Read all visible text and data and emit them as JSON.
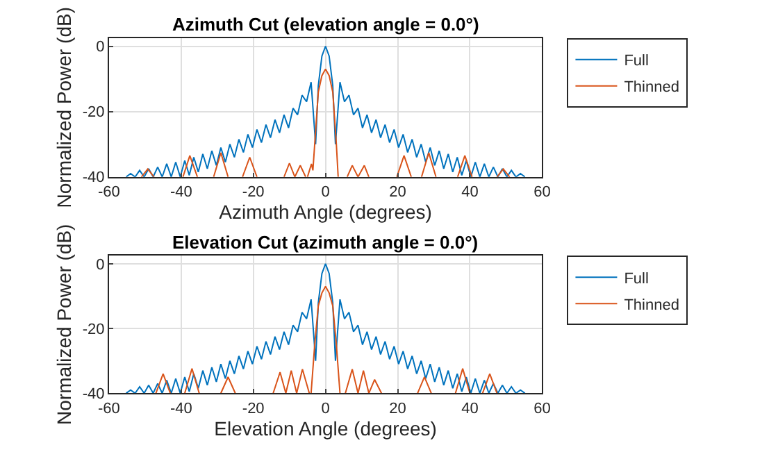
{
  "chart_data": [
    {
      "type": "line",
      "title": "Azimuth Cut (elevation angle = 0.0°)",
      "xlabel": "Azimuth Angle (degrees)",
      "ylabel": "Normalized Power (dB)",
      "xlim": [
        -60,
        60
      ],
      "ylim": [
        -40,
        2.5
      ],
      "xticks": [
        -60,
        -40,
        -20,
        0,
        20,
        40,
        60
      ],
      "yticks": [
        -40,
        -20,
        0
      ],
      "grid": true,
      "legend": "right",
      "marker": "none",
      "line_style": "solid",
      "series": [
        {
          "name": "Full",
          "color": "#0072bd",
          "x": [
            -55.25,
            -54,
            -52.75,
            -51.5,
            -50.25,
            -49,
            -47.75,
            -46.5,
            -45.25,
            -44,
            -42.75,
            -41.5,
            -40.25,
            -39,
            -37.75,
            -36.5,
            -35.25,
            -34,
            -32.75,
            -31.5,
            -30.25,
            -29,
            -27.75,
            -26.5,
            -25.25,
            -24,
            -22.75,
            -21.5,
            -20.25,
            -19,
            -17.75,
            -16.5,
            -15.25,
            -14,
            -12.75,
            -11.5,
            -10.25,
            -9,
            -7.75,
            -6.5,
            -5.25,
            -4,
            -2.75,
            -2,
            -1,
            0,
            1,
            2,
            2.75,
            4,
            5.25,
            6.5,
            7.75,
            9,
            10.25,
            11.5,
            12.75,
            14,
            15.25,
            16.5,
            17.75,
            19,
            20.25,
            21.5,
            22.75,
            24,
            25.25,
            26.5,
            27.75,
            29,
            30.25,
            31.5,
            32.75,
            34,
            35.25,
            36.5,
            37.75,
            39,
            40.25,
            41.5,
            42.75,
            44,
            45.25,
            46.5,
            47.75,
            49,
            50.25,
            51.5,
            52.75,
            54,
            55.25
          ],
          "values": [
            -40,
            -39,
            -40,
            -38,
            -40,
            -37.5,
            -40,
            -37,
            -40,
            -36,
            -40,
            -35.5,
            -40,
            -35,
            -39.5,
            -34,
            -38.5,
            -33,
            -37.5,
            -32,
            -36.5,
            -31,
            -35.5,
            -30,
            -34,
            -28.5,
            -32.5,
            -27,
            -31,
            -25.5,
            -29.5,
            -24,
            -28,
            -22.5,
            -26.5,
            -21,
            -25,
            -19,
            -21,
            -15,
            -17,
            -11,
            -30,
            -12,
            -3,
            0,
            -3,
            -12,
            -30,
            -11,
            -17,
            -15,
            -21,
            -19,
            -25,
            -21,
            -26.5,
            -22.5,
            -28,
            -24,
            -29.5,
            -25.5,
            -31,
            -27,
            -32.5,
            -28.5,
            -34,
            -30,
            -35.5,
            -31,
            -36.5,
            -32,
            -37.5,
            -33,
            -38.5,
            -34,
            -39.5,
            -35,
            -40,
            -35.5,
            -40,
            -36,
            -40,
            -37,
            -40,
            -37.5,
            -40,
            -38,
            -40,
            -39,
            -40
          ]
        },
        {
          "name": "Thinned",
          "color": "#d95319",
          "x": [
            -51,
            -49.25,
            -47.5,
            -43,
            -39.5,
            -37.6,
            -35.5,
            -33,
            -31,
            -29,
            -27,
            -25,
            -23,
            -21,
            -19,
            -15,
            -11.5,
            -10,
            -8.5,
            -7,
            -5.5,
            -5.2,
            -5,
            -3.9,
            -3.5,
            -3,
            -2,
            -1,
            0,
            1,
            2,
            3,
            3.5,
            5,
            6,
            7.4,
            9,
            10.75,
            12,
            16,
            19.75,
            21.75,
            23.75,
            25,
            26.6,
            28.6,
            30.6,
            33,
            36.6,
            38.6,
            40.6,
            44,
            47.5,
            49.25,
            51
          ],
          "values": [
            -40,
            -37.6,
            -40,
            null,
            -40,
            -33.5,
            -40,
            null,
            -40,
            -32.6,
            -40,
            null,
            -40,
            -34,
            -40,
            null,
            -40,
            -35.8,
            -40,
            -36.5,
            -40,
            null,
            -40,
            -36,
            -38,
            -30,
            -14,
            -9,
            -7,
            -9,
            -14,
            -30,
            -40,
            null,
            -40,
            -36.5,
            -40,
            -36.5,
            -40,
            null,
            -40,
            -33.5,
            -40,
            null,
            -40,
            -32.6,
            -40,
            null,
            -40,
            -33.5,
            -40,
            null,
            -40,
            -37.6,
            -40
          ]
        }
      ]
    },
    {
      "type": "line",
      "title": "Elevation Cut (azimuth angle = 0.0°)",
      "xlabel": "Elevation Angle (degrees)",
      "ylabel": "Normalized Power (dB)",
      "xlim": [
        -60,
        60
      ],
      "ylim": [
        -40,
        2.5
      ],
      "xticks": [
        -60,
        -40,
        -20,
        0,
        20,
        40,
        60
      ],
      "yticks": [
        -40,
        -20,
        0
      ],
      "grid": true,
      "legend": "right",
      "marker": "none",
      "line_style": "solid",
      "series": [
        {
          "name": "Full",
          "color": "#0072bd",
          "x": [
            -55.25,
            -54,
            -52.75,
            -51.5,
            -50.25,
            -49,
            -47.75,
            -46.5,
            -45.25,
            -44,
            -42.75,
            -41.5,
            -40.25,
            -39,
            -37.75,
            -36.5,
            -35.25,
            -34,
            -32.75,
            -31.5,
            -30.25,
            -29,
            -27.75,
            -26.5,
            -25.25,
            -24,
            -22.75,
            -21.5,
            -20.25,
            -19,
            -17.75,
            -16.5,
            -15.25,
            -14,
            -12.75,
            -11.5,
            -10.25,
            -9,
            -7.75,
            -6.5,
            -5.25,
            -4,
            -2.75,
            -2,
            -1,
            0,
            1,
            2,
            2.75,
            4,
            5.25,
            6.5,
            7.75,
            9,
            10.25,
            11.5,
            12.75,
            14,
            15.25,
            16.5,
            17.75,
            19,
            20.25,
            21.5,
            22.75,
            24,
            25.25,
            26.5,
            27.75,
            29,
            30.25,
            31.5,
            32.75,
            34,
            35.25,
            36.5,
            37.75,
            39,
            40.25,
            41.5,
            42.75,
            44,
            45.25,
            46.5,
            47.75,
            49,
            50.25,
            51.5,
            52.75,
            54,
            55.25
          ],
          "values": [
            -40,
            -39,
            -40,
            -38,
            -40,
            -37.5,
            -40,
            -37,
            -40,
            -36,
            -40,
            -35.5,
            -40,
            -35,
            -39.5,
            -34,
            -38.5,
            -33,
            -37.5,
            -32,
            -36.5,
            -31,
            -35.5,
            -30,
            -34,
            -28.5,
            -32.5,
            -27,
            -31,
            -25.5,
            -29.5,
            -24,
            -28,
            -22.5,
            -26.5,
            -21,
            -25,
            -19,
            -21,
            -15,
            -17,
            -11,
            -30,
            -12,
            -3,
            0,
            -3,
            -12,
            -30,
            -11,
            -17,
            -15,
            -21,
            -19,
            -25,
            -21,
            -26.5,
            -22.5,
            -28,
            -24,
            -29.5,
            -25.5,
            -31,
            -27,
            -32.5,
            -28.5,
            -34,
            -30,
            -35.5,
            -31,
            -36.5,
            -32,
            -37.5,
            -33,
            -38.5,
            -34,
            -39.5,
            -35,
            -40,
            -35.5,
            -40,
            -36,
            -40,
            -37,
            -40,
            -37.5,
            -40,
            -38,
            -40,
            -39,
            -40
          ]
        },
        {
          "name": "Thinned",
          "color": "#d95319",
          "x": [
            -47,
            -45,
            -43,
            -41,
            -39,
            -37,
            -35,
            -32,
            -29,
            -27,
            -25,
            -20,
            -14.5,
            -12.6,
            -11,
            -9.5,
            -8,
            -6.4,
            -4.5,
            -4.2,
            -4,
            -3,
            -2,
            -1,
            0,
            1,
            2,
            3,
            4,
            4.8,
            5.5,
            7.4,
            9,
            10.5,
            12,
            13.6,
            15.5,
            20,
            25.5,
            27.4,
            29.3,
            33,
            36,
            38,
            40,
            42,
            43.5,
            45.5,
            47.5
          ],
          "values": [
            -40,
            -34,
            -40,
            null,
            -40,
            -32.4,
            -40,
            null,
            -40,
            -35,
            -40,
            null,
            -40,
            -33.5,
            -40,
            -33,
            -40,
            -32.6,
            -40,
            null,
            -40,
            -25,
            -13,
            -9,
            -7,
            -9,
            -13,
            -25,
            -40,
            null,
            -40,
            -32.6,
            -40,
            -33,
            -40,
            -35.8,
            -40,
            null,
            -40,
            -35,
            -40,
            null,
            -40,
            -32.4,
            -40,
            null,
            -40,
            -34,
            -40
          ]
        }
      ]
    }
  ]
}
